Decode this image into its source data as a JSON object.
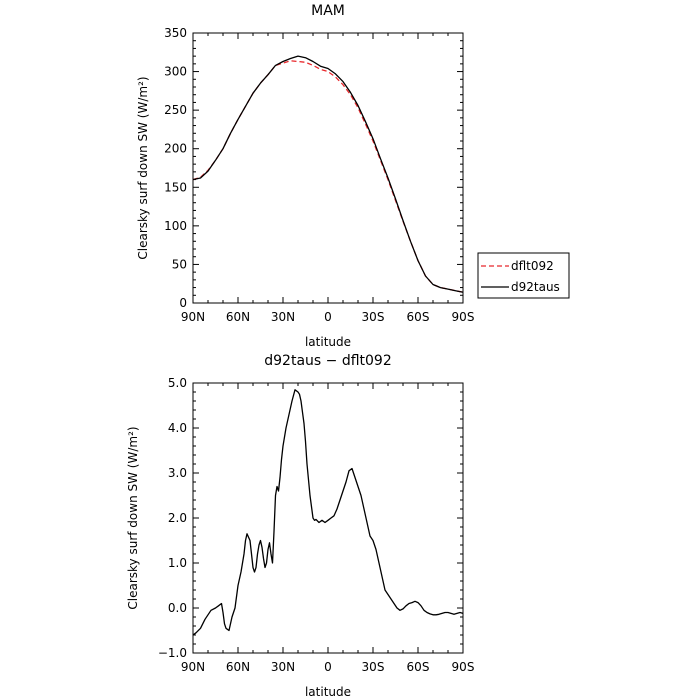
{
  "chart_data": [
    {
      "type": "line",
      "title": "MAM",
      "xlabel": "latitude",
      "ylabel": "Clearsky surf down SW (W/m²)",
      "xlim": [
        90,
        -90
      ],
      "ylim": [
        0,
        350
      ],
      "xticks": [
        90,
        60,
        30,
        0,
        -30,
        -60,
        -90
      ],
      "xtick_labels": [
        "90N",
        "60N",
        "30N",
        "0",
        "30S",
        "60S",
        "90S"
      ],
      "yticks": [
        0,
        50,
        100,
        150,
        200,
        250,
        300,
        350
      ],
      "ytick_labels": [
        "0",
        "50",
        "100",
        "150",
        "200",
        "250",
        "300",
        "350"
      ],
      "grid": false,
      "legend_position": "right",
      "series": [
        {
          "name": "dflt092",
          "color": "#e8282c",
          "dash": "dashed",
          "x": [
            90,
            85,
            80,
            75,
            70,
            65,
            60,
            55,
            50,
            45,
            40,
            35,
            30,
            25,
            20,
            15,
            10,
            5,
            0,
            -5,
            -10,
            -15,
            -20,
            -25,
            -30,
            -35,
            -40,
            -45,
            -50,
            -55,
            -60,
            -65,
            -70,
            -75,
            -80,
            -85,
            -90
          ],
          "y": [
            160,
            163,
            172,
            185,
            200,
            220,
            238,
            255,
            272,
            285,
            296,
            308,
            311,
            314,
            313,
            312,
            308,
            303,
            300,
            293,
            283,
            270,
            253,
            232,
            210,
            185,
            160,
            133,
            106,
            80,
            55,
            35,
            24,
            20,
            18,
            16,
            14
          ]
        },
        {
          "name": "d92taus",
          "color": "#000000",
          "dash": "solid",
          "x": [
            90,
            85,
            80,
            75,
            70,
            65,
            60,
            55,
            50,
            45,
            40,
            35,
            30,
            25,
            20,
            15,
            10,
            5,
            0,
            -5,
            -10,
            -15,
            -20,
            -25,
            -30,
            -35,
            -40,
            -45,
            -50,
            -55,
            -60,
            -65,
            -70,
            -75,
            -80,
            -85,
            -90
          ],
          "y": [
            160,
            162,
            171,
            185,
            200,
            220,
            238,
            255,
            272,
            285,
            296,
            308,
            313,
            317,
            320,
            318,
            313,
            307,
            304,
            297,
            287,
            273,
            256,
            235,
            213,
            187,
            162,
            135,
            107,
            80,
            55,
            35,
            24,
            20,
            18,
            16,
            14
          ]
        }
      ]
    },
    {
      "type": "line",
      "title": "d92taus − dflt092",
      "xlabel": "latitude",
      "ylabel": "Clearsky surf down SW (W/m²)",
      "xlim": [
        90,
        -90
      ],
      "ylim": [
        -1.0,
        5.0
      ],
      "xticks": [
        90,
        60,
        30,
        0,
        -30,
        -60,
        -90
      ],
      "xtick_labels": [
        "90N",
        "60N",
        "30N",
        "0",
        "30S",
        "60S",
        "90S"
      ],
      "yticks": [
        -1.0,
        0.0,
        1.0,
        2.0,
        3.0,
        4.0,
        5.0
      ],
      "ytick_labels": [
        "−1.0",
        "0.0",
        "1.0",
        "2.0",
        "3.0",
        "4.0",
        "5.0"
      ],
      "grid": false,
      "series": [
        {
          "color": "#000000",
          "dash": "solid",
          "x": [
            90,
            88,
            85,
            82,
            80,
            78,
            75,
            73,
            71,
            70,
            69,
            68,
            66,
            64,
            62,
            60,
            58,
            56,
            55,
            54,
            52,
            51,
            50,
            49,
            48,
            47,
            46,
            45,
            44,
            43,
            42,
            41,
            40,
            39,
            38,
            37,
            36,
            35,
            34,
            33,
            32,
            31,
            30,
            28,
            26,
            24,
            22,
            20,
            19,
            18,
            17,
            16,
            15,
            14,
            12,
            10,
            9,
            8,
            6,
            4,
            2,
            0,
            -2,
            -4,
            -6,
            -8,
            -10,
            -12,
            -14,
            -16,
            -18,
            -20,
            -22,
            -24,
            -26,
            -28,
            -30,
            -32,
            -34,
            -36,
            -38,
            -40,
            -42,
            -44,
            -46,
            -48,
            -50,
            -52,
            -54,
            -56,
            -58,
            -60,
            -62,
            -64,
            -66,
            -68,
            -70,
            -72,
            -74,
            -76,
            -78,
            -80,
            -82,
            -84,
            -86,
            -88,
            -90
          ],
          "y": [
            -0.6,
            -0.55,
            -0.45,
            -0.25,
            -0.15,
            -0.05,
            0.0,
            0.05,
            0.1,
            -0.1,
            -0.35,
            -0.45,
            -0.5,
            -0.2,
            0.0,
            0.5,
            0.8,
            1.2,
            1.5,
            1.65,
            1.5,
            1.2,
            0.9,
            0.8,
            0.9,
            1.2,
            1.4,
            1.5,
            1.35,
            1.1,
            0.9,
            1.0,
            1.3,
            1.45,
            1.2,
            1.0,
            1.7,
            2.5,
            2.7,
            2.6,
            2.9,
            3.3,
            3.6,
            4.0,
            4.3,
            4.6,
            4.85,
            4.8,
            4.75,
            4.6,
            4.35,
            4.1,
            3.7,
            3.2,
            2.5,
            2.0,
            1.95,
            1.97,
            1.9,
            1.95,
            1.9,
            1.95,
            2.0,
            2.05,
            2.2,
            2.4,
            2.6,
            2.8,
            3.05,
            3.1,
            2.9,
            2.7,
            2.5,
            2.2,
            1.9,
            1.6,
            1.5,
            1.3,
            1.0,
            0.7,
            0.4,
            0.3,
            0.2,
            0.1,
            0.0,
            -0.05,
            -0.02,
            0.05,
            0.1,
            0.12,
            0.15,
            0.12,
            0.05,
            -0.05,
            -0.1,
            -0.13,
            -0.15,
            -0.15,
            -0.14,
            -0.12,
            -0.1,
            -0.1,
            -0.12,
            -0.14,
            -0.12,
            -0.1,
            -0.12
          ]
        }
      ]
    }
  ]
}
